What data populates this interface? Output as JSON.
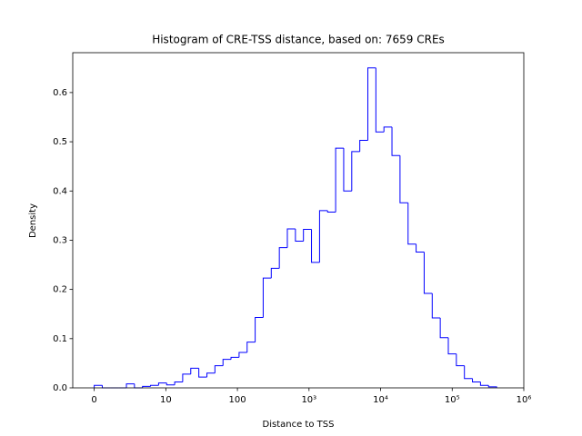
{
  "chart_data": {
    "type": "histogram",
    "title": "Histogram of CRE-TSS distance, based on: 7659 CREs",
    "x_label": "Distance to TSS",
    "y_label": "Density",
    "xscale": "symlog",
    "linthresh": 10,
    "color": "#0000ff",
    "bins": [
      0,
      1.124,
      2.248,
      3.372,
      4.496,
      5.62,
      6.744,
      7.868,
      8.992,
      10.27,
      13.3,
      17.2,
      22.3,
      28.9,
      37.5,
      48.5,
      62.9,
      81.4,
      105.5,
      136.6,
      177,
      229,
      297,
      385,
      498,
      646,
      836,
      1083,
      1404,
      1818,
      2355,
      3051,
      3953,
      5120,
      6632,
      8590,
      11130,
      14410,
      18670,
      24190,
      31330,
      40590,
      52580,
      68110,
      88230,
      114300,
      148100,
      191800,
      248500,
      321900,
      416900
    ],
    "values": [
      0.005,
      0,
      0,
      0,
      0.008,
      0,
      0.003,
      0.005,
      0.01,
      0.006,
      0.012,
      0.028,
      0.04,
      0.022,
      0.03,
      0.045,
      0.058,
      0.062,
      0.072,
      0.093,
      0.143,
      0.223,
      0.243,
      0.285,
      0.323,
      0.298,
      0.322,
      0.255,
      0.36,
      0.357,
      0.487,
      0.4,
      0.48,
      0.503,
      0.65,
      0.52,
      0.53,
      0.472,
      0.376,
      0.292,
      0.276,
      0.192,
      0.142,
      0.102,
      0.069,
      0.045,
      0.019,
      0.012,
      0.005,
      0.002
    ],
    "xlim": [
      -3,
      1000000
    ],
    "xticks": [
      0,
      10,
      100,
      {
        "value": 1000,
        "label": "10³"
      },
      {
        "value": 10000,
        "label": "10⁴"
      },
      {
        "value": 100000,
        "label": "10⁵"
      },
      {
        "value": 1000000,
        "label": "10⁶"
      }
    ],
    "ylim": [
      0,
      0.681
    ],
    "yticks": [
      {
        "value": 0,
        "label": "0.0"
      },
      0.1,
      0.2,
      0.3,
      0.4,
      0.5,
      0.6
    ]
  }
}
